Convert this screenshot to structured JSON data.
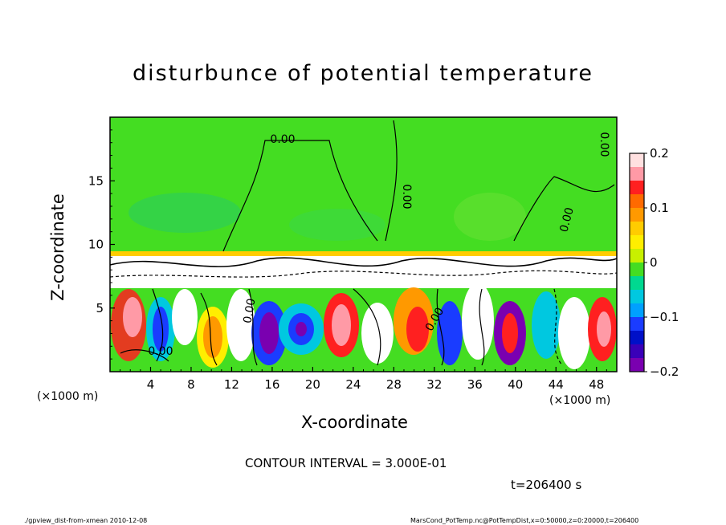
{
  "title": "disturbunce of potential temperature",
  "footer": {
    "left": "./gpview_dist-from-xmean  2010-12-08",
    "right": "MarsCond_PotTemp.nc@PotTempDist,x=0:50000,z=0:20000,t=206400"
  },
  "contour_interval": "CONTOUR INTERVAL = 3.000E-01",
  "time_label": "t=206400 s",
  "colors": {
    "positive_high": "#ff8c94",
    "positive": "#ff2020",
    "orange": "#ff9900",
    "yellow": "#ffe000",
    "zero": "#44dd22",
    "cyan": "#00c8e0",
    "blue": "#1a3cff",
    "negative_low": "#7a00b0"
  },
  "chart_data": {
    "type": "heatmap",
    "title": "disturbunce of potential temperature",
    "xlabel": "X-coordinate",
    "ylabel": "Z-coordinate",
    "x_unit": "(×1000 m)",
    "xlim": [
      0,
      50
    ],
    "ylim": [
      0,
      20
    ],
    "xticks": [
      "4",
      "8",
      "12",
      "16",
      "20",
      "24",
      "28",
      "32",
      "36",
      "40",
      "44",
      "48"
    ],
    "yticks": [
      "5",
      "10",
      "15"
    ],
    "colorbar": {
      "range": [
        -0.2,
        0.2
      ],
      "ticks": [
        "0.2",
        "0.1",
        "0",
        "−0.1",
        "−0.2"
      ],
      "levels": [
        {
          "value": 0.2,
          "color": "#ffe0e0"
        },
        {
          "value": 0.175,
          "color": "#ff9aa6"
        },
        {
          "value": 0.15,
          "color": "#ff2020"
        },
        {
          "value": 0.125,
          "color": "#ff6a00"
        },
        {
          "value": 0.1,
          "color": "#ff9900"
        },
        {
          "value": 0.075,
          "color": "#ffcc00"
        },
        {
          "value": 0.05,
          "color": "#ffee00"
        },
        {
          "value": 0.025,
          "color": "#c8f000"
        },
        {
          "value": 0.0,
          "color": "#44dd22"
        },
        {
          "value": -0.025,
          "color": "#00d890"
        },
        {
          "value": -0.05,
          "color": "#00c8e0"
        },
        {
          "value": -0.075,
          "color": "#00a0ff"
        },
        {
          "value": -0.1,
          "color": "#1a3cff"
        },
        {
          "value": -0.125,
          "color": "#0010c8"
        },
        {
          "value": -0.15,
          "color": "#3a00b8"
        },
        {
          "value": -0.175,
          "color": "#7a00b0"
        }
      ]
    },
    "contour_labels": [
      "0.00",
      "0.00",
      "0.00",
      "0.00",
      "0.00",
      "0.00",
      "0.00"
    ],
    "grid": false
  }
}
